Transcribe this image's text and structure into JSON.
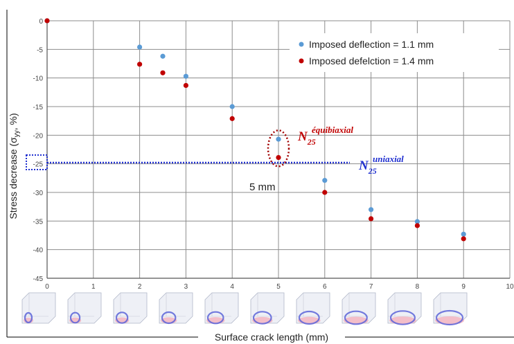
{
  "chart_data": {
    "type": "scatter",
    "xlabel": "Surface crack length (mm)",
    "ylabel_main": "Stress decrease (σ",
    "ylabel_sub": "yy",
    "ylabel_end": ", %)",
    "xlim": [
      0,
      10
    ],
    "ylim": [
      -45,
      0
    ],
    "x_ticks": [
      "0",
      "1",
      "2",
      "3",
      "4",
      "5",
      "6",
      "7",
      "8",
      "9",
      "10"
    ],
    "y_ticks": [
      "0",
      "-5",
      "-10",
      "-15",
      "-20",
      "-25",
      "-30",
      "-35",
      "-40",
      "-45"
    ],
    "grid": true,
    "legend_position": "top-right",
    "series": [
      {
        "name": "Imposed deflection = 1.1 mm",
        "color": "#5b9bd5",
        "points": [
          [
            0,
            0
          ],
          [
            2,
            -4.6
          ],
          [
            2.5,
            -6.2
          ],
          [
            3,
            -9.7
          ],
          [
            4,
            -15.0
          ],
          [
            5,
            -20.7
          ],
          [
            6,
            -27.9
          ],
          [
            7,
            -33.0
          ],
          [
            8,
            -35.1
          ],
          [
            9,
            -37.3
          ]
        ]
      },
      {
        "name": "Imposed defelction = 1.4 mm",
        "color": "#c00000",
        "points": [
          [
            0,
            0
          ],
          [
            2,
            -7.6
          ],
          [
            2.5,
            -9.1
          ],
          [
            3,
            -11.3
          ],
          [
            4,
            -17.1
          ],
          [
            5,
            -23.9
          ],
          [
            6,
            -30.0
          ],
          [
            7,
            -34.6
          ],
          [
            8,
            -35.8
          ],
          [
            9,
            -38.1
          ]
        ]
      }
    ],
    "annotations": {
      "equibiaxial": {
        "base": "N",
        "sub": "25",
        "sup": "équibiaxial",
        "color": "#c00000"
      },
      "uniaxial": {
        "base": "N",
        "sub": "25",
        "sup": "uniaxial",
        "color": "#1f2fd0",
        "y": -24.8
      },
      "size_note": "5 mm"
    },
    "thumbnails": [
      "0",
      "1",
      "2",
      "3",
      "4",
      "5",
      "6",
      "7",
      "8",
      "9"
    ]
  }
}
